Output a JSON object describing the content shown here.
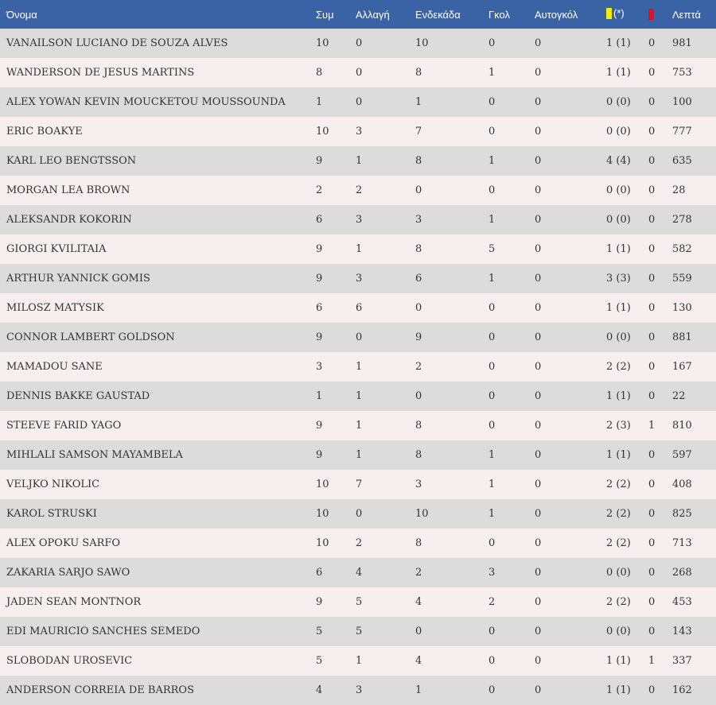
{
  "table": {
    "headers": {
      "name": "Όνομα",
      "appearances": "Συμ",
      "substitute": "Αλλαγή",
      "starting": "Ενδεκάδα",
      "goals": "Γκολ",
      "own_goals": "Αυτογκόλ",
      "yellow_suffix": "(*)",
      "minutes": "Λεπτά"
    },
    "card_colors": {
      "yellow": "#f6ee00",
      "red": "#e0121b"
    },
    "rows": [
      {
        "name": "VANAILSON LUCIANO DE SOUZA ALVES",
        "apps": "10",
        "sub": "0",
        "start": "10",
        "goals": "0",
        "og": "0",
        "yellow": "1 (1)",
        "red": "0",
        "minutes": "981"
      },
      {
        "name": "WANDERSON DE JESUS MARTINS",
        "apps": "8",
        "sub": "0",
        "start": "8",
        "goals": "1",
        "og": "0",
        "yellow": "1 (1)",
        "red": "0",
        "minutes": "753"
      },
      {
        "name": "ALEX YOWAN KEVIN MOUCKETOU MOUSSOUNDA",
        "apps": "1",
        "sub": "0",
        "start": "1",
        "goals": "0",
        "og": "0",
        "yellow": "0 (0)",
        "red": "0",
        "minutes": "100"
      },
      {
        "name": "ERIC BOAKYE",
        "apps": "10",
        "sub": "3",
        "start": "7",
        "goals": "0",
        "og": "0",
        "yellow": "0 (0)",
        "red": "0",
        "minutes": "777"
      },
      {
        "name": "KARL LEO BENGTSSON",
        "apps": "9",
        "sub": "1",
        "start": "8",
        "goals": "1",
        "og": "0",
        "yellow": "4 (4)",
        "red": "0",
        "minutes": "635"
      },
      {
        "name": "MORGAN LEA BROWN",
        "apps": "2",
        "sub": "2",
        "start": "0",
        "goals": "0",
        "og": "0",
        "yellow": "0 (0)",
        "red": "0",
        "minutes": "28"
      },
      {
        "name": "ALEKSANDR KOKORIN",
        "apps": "6",
        "sub": "3",
        "start": "3",
        "goals": "1",
        "og": "0",
        "yellow": "0 (0)",
        "red": "0",
        "minutes": "278"
      },
      {
        "name": "GIORGI KVILITAIA",
        "apps": "9",
        "sub": "1",
        "start": "8",
        "goals": "5",
        "og": "0",
        "yellow": "1 (1)",
        "red": "0",
        "minutes": "582"
      },
      {
        "name": "ARTHUR YANNICK GOMIS",
        "apps": "9",
        "sub": "3",
        "start": "6",
        "goals": "1",
        "og": "0",
        "yellow": "3 (3)",
        "red": "0",
        "minutes": "559"
      },
      {
        "name": "MILOSZ MATYSIK",
        "apps": "6",
        "sub": "6",
        "start": "0",
        "goals": "0",
        "og": "0",
        "yellow": "1 (1)",
        "red": "0",
        "minutes": "130"
      },
      {
        "name": "CONNOR LAMBERT GOLDSON",
        "apps": "9",
        "sub": "0",
        "start": "9",
        "goals": "0",
        "og": "0",
        "yellow": "0 (0)",
        "red": "0",
        "minutes": "881"
      },
      {
        "name": "MAMADOU SANE",
        "apps": "3",
        "sub": "1",
        "start": "2",
        "goals": "0",
        "og": "0",
        "yellow": "2 (2)",
        "red": "0",
        "minutes": "167"
      },
      {
        "name": "DENNIS BAKKE GAUSTAD",
        "apps": "1",
        "sub": "1",
        "start": "0",
        "goals": "0",
        "og": "0",
        "yellow": "1 (1)",
        "red": "0",
        "minutes": "22"
      },
      {
        "name": "STEEVE FARID YAGO",
        "apps": "9",
        "sub": "1",
        "start": "8",
        "goals": "0",
        "og": "0",
        "yellow": "2 (3)",
        "red": "1",
        "minutes": "810"
      },
      {
        "name": "MIHLALI SAMSON MAYAMBELA",
        "apps": "9",
        "sub": "1",
        "start": "8",
        "goals": "1",
        "og": "0",
        "yellow": "1 (1)",
        "red": "0",
        "minutes": "597"
      },
      {
        "name": "VELJKO NIKOLIC",
        "apps": "10",
        "sub": "7",
        "start": "3",
        "goals": "1",
        "og": "0",
        "yellow": "2 (2)",
        "red": "0",
        "minutes": "408"
      },
      {
        "name": "KAROL STRUSKI",
        "apps": "10",
        "sub": "0",
        "start": "10",
        "goals": "1",
        "og": "0",
        "yellow": "2 (2)",
        "red": "0",
        "minutes": "825"
      },
      {
        "name": "ALEX OPOKU SARFO",
        "apps": "10",
        "sub": "2",
        "start": "8",
        "goals": "0",
        "og": "0",
        "yellow": "2 (2)",
        "red": "0",
        "minutes": "713"
      },
      {
        "name": "ZAKARIA SARJO SAWO",
        "apps": "6",
        "sub": "4",
        "start": "2",
        "goals": "3",
        "og": "0",
        "yellow": "0 (0)",
        "red": "0",
        "minutes": "268"
      },
      {
        "name": "JADEN SEAN MONTNOR",
        "apps": "9",
        "sub": "5",
        "start": "4",
        "goals": "2",
        "og": "0",
        "yellow": "2 (2)",
        "red": "0",
        "minutes": "453"
      },
      {
        "name": "EDI MAURICIO SANCHES SEMEDO",
        "apps": "5",
        "sub": "5",
        "start": "0",
        "goals": "0",
        "og": "0",
        "yellow": "0 (0)",
        "red": "0",
        "minutes": "143"
      },
      {
        "name": "SLOBODAN UROSEVIC",
        "apps": "5",
        "sub": "1",
        "start": "4",
        "goals": "0",
        "og": "0",
        "yellow": "1 (1)",
        "red": "1",
        "minutes": "337"
      },
      {
        "name": "ANDERSON CORREIA DE BARROS",
        "apps": "4",
        "sub": "3",
        "start": "1",
        "goals": "0",
        "og": "0",
        "yellow": "1 (1)",
        "red": "0",
        "minutes": "162"
      }
    ]
  }
}
